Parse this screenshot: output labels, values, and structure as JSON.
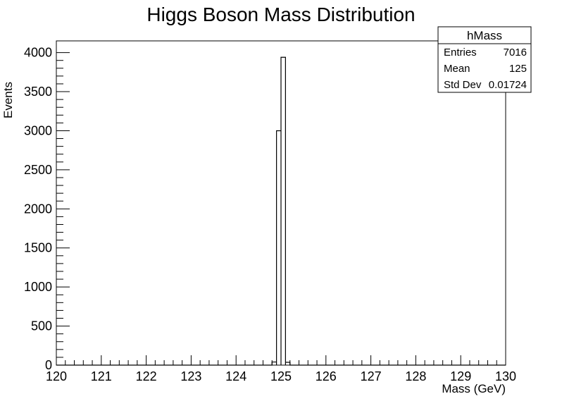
{
  "chart_data": {
    "type": "bar",
    "title": "Higgs Boson Mass Distribution",
    "xlabel": "Mass (GeV)",
    "ylabel": "Events",
    "xlim": [
      120,
      130
    ],
    "ylim": [
      0,
      4150
    ],
    "x_ticks": [
      120,
      121,
      122,
      123,
      124,
      125,
      126,
      127,
      128,
      129,
      130
    ],
    "y_ticks": [
      0,
      500,
      1000,
      1500,
      2000,
      2500,
      3000,
      3500,
      4000
    ],
    "x_tick_labels": [
      "120",
      "121",
      "122",
      "123",
      "124",
      "125",
      "126",
      "127",
      "128",
      "129",
      "130"
    ],
    "y_tick_labels": [
      "0",
      "500",
      "1000",
      "1500",
      "2000",
      "2500",
      "3000",
      "3500",
      "4000"
    ],
    "bins": [
      {
        "x_low": 124.8,
        "x_high": 124.9,
        "value": 40
      },
      {
        "x_low": 124.9,
        "x_high": 125.0,
        "value": 3000
      },
      {
        "x_low": 125.0,
        "x_high": 125.1,
        "value": 3940
      },
      {
        "x_low": 125.1,
        "x_high": 125.2,
        "value": 36
      }
    ],
    "grid": false,
    "legend": "none"
  },
  "stats_box": {
    "title": "hMass",
    "rows": [
      {
        "label": "Entries",
        "value": "7016"
      },
      {
        "label": "Mean",
        "value": "125"
      },
      {
        "label": "Std Dev",
        "value": "0.01724"
      }
    ]
  }
}
